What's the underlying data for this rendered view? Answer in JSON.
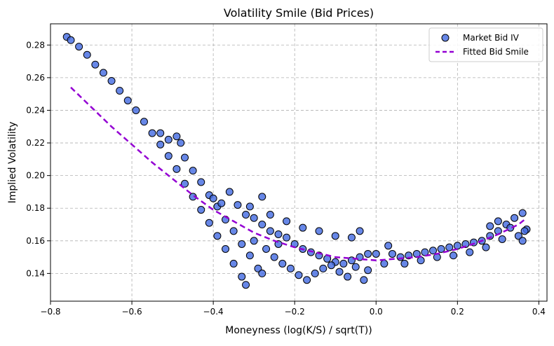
{
  "chart_data": {
    "type": "scatter",
    "title": "Volatility Smile (Bid Prices)",
    "xlabel": "Moneyness (log(K/S) / sqrt(T))",
    "ylabel": "Implied Volatility",
    "xlim": [
      -0.8,
      0.42
    ],
    "ylim": [
      0.123,
      0.293
    ],
    "xticks": [
      -0.8,
      -0.6,
      -0.4,
      -0.2,
      0.0,
      0.2,
      0.4
    ],
    "xtick_labels": [
      "−0.8",
      "−0.6",
      "−0.4",
      "−0.2",
      "0.0",
      "0.2",
      "0.4"
    ],
    "yticks": [
      0.14,
      0.16,
      0.18,
      0.2,
      0.22,
      0.24,
      0.26,
      0.28
    ],
    "ytick_labels": [
      "0.14",
      "0.16",
      "0.18",
      "0.20",
      "0.22",
      "0.24",
      "0.26",
      "0.28"
    ],
    "grid": true,
    "legend_position": "top-right",
    "colors": {
      "scatter_fill": "#4169e1",
      "scatter_edge": "#000000",
      "fit_line": "#9400d3",
      "grid": "#b0b0b0"
    },
    "series": [
      {
        "name": "Market Bid IV",
        "kind": "scatter",
        "points": [
          [
            -0.76,
            0.285
          ],
          [
            -0.75,
            0.283
          ],
          [
            -0.73,
            0.279
          ],
          [
            -0.71,
            0.274
          ],
          [
            -0.69,
            0.268
          ],
          [
            -0.67,
            0.263
          ],
          [
            -0.65,
            0.258
          ],
          [
            -0.63,
            0.252
          ],
          [
            -0.61,
            0.246
          ],
          [
            -0.59,
            0.24
          ],
          [
            -0.57,
            0.233
          ],
          [
            -0.55,
            0.226
          ],
          [
            -0.53,
            0.219
          ],
          [
            -0.51,
            0.212
          ],
          [
            -0.49,
            0.204
          ],
          [
            -0.47,
            0.195
          ],
          [
            -0.45,
            0.187
          ],
          [
            -0.43,
            0.179
          ],
          [
            -0.41,
            0.171
          ],
          [
            -0.39,
            0.163
          ],
          [
            -0.37,
            0.155
          ],
          [
            -0.35,
            0.146
          ],
          [
            -0.33,
            0.138
          ],
          [
            -0.32,
            0.133
          ],
          [
            -0.53,
            0.226
          ],
          [
            -0.51,
            0.222
          ],
          [
            -0.49,
            0.224
          ],
          [
            -0.48,
            0.22
          ],
          [
            -0.47,
            0.211
          ],
          [
            -0.45,
            0.203
          ],
          [
            -0.43,
            0.196
          ],
          [
            -0.41,
            0.188
          ],
          [
            -0.39,
            0.181
          ],
          [
            -0.37,
            0.173
          ],
          [
            -0.35,
            0.166
          ],
          [
            -0.33,
            0.158
          ],
          [
            -0.31,
            0.151
          ],
          [
            -0.29,
            0.143
          ],
          [
            -0.28,
            0.14
          ],
          [
            -0.4,
            0.186
          ],
          [
            -0.38,
            0.183
          ],
          [
            -0.36,
            0.19
          ],
          [
            -0.34,
            0.182
          ],
          [
            -0.32,
            0.176
          ],
          [
            -0.3,
            0.174
          ],
          [
            -0.28,
            0.17
          ],
          [
            -0.26,
            0.166
          ],
          [
            -0.24,
            0.164
          ],
          [
            -0.22,
            0.162
          ],
          [
            -0.2,
            0.158
          ],
          [
            -0.18,
            0.155
          ],
          [
            -0.16,
            0.153
          ],
          [
            -0.14,
            0.151
          ],
          [
            -0.12,
            0.149
          ],
          [
            -0.1,
            0.147
          ],
          [
            -0.08,
            0.146
          ],
          [
            -0.06,
            0.148
          ],
          [
            -0.04,
            0.15
          ],
          [
            -0.02,
            0.152
          ],
          [
            -0.3,
            0.16
          ],
          [
            -0.27,
            0.155
          ],
          [
            -0.25,
            0.15
          ],
          [
            -0.23,
            0.146
          ],
          [
            -0.21,
            0.143
          ],
          [
            -0.19,
            0.139
          ],
          [
            -0.17,
            0.136
          ],
          [
            -0.15,
            0.14
          ],
          [
            -0.13,
            0.143
          ],
          [
            -0.11,
            0.145
          ],
          [
            -0.09,
            0.141
          ],
          [
            -0.07,
            0.138
          ],
          [
            -0.05,
            0.144
          ],
          [
            -0.03,
            0.136
          ],
          [
            -0.02,
            0.142
          ],
          [
            -0.26,
            0.176
          ],
          [
            -0.22,
            0.172
          ],
          [
            -0.18,
            0.168
          ],
          [
            -0.14,
            0.166
          ],
          [
            -0.1,
            0.163
          ],
          [
            -0.06,
            0.162
          ],
          [
            -0.04,
            0.166
          ],
          [
            -0.28,
            0.187
          ],
          [
            -0.31,
            0.181
          ],
          [
            -0.24,
            0.158
          ],
          [
            0.0,
            0.152
          ],
          [
            0.02,
            0.146
          ],
          [
            0.04,
            0.152
          ],
          [
            0.06,
            0.15
          ],
          [
            0.08,
            0.151
          ],
          [
            0.1,
            0.152
          ],
          [
            0.12,
            0.153
          ],
          [
            0.14,
            0.154
          ],
          [
            0.16,
            0.155
          ],
          [
            0.18,
            0.156
          ],
          [
            0.2,
            0.157
          ],
          [
            0.22,
            0.158
          ],
          [
            0.24,
            0.159
          ],
          [
            0.26,
            0.16
          ],
          [
            0.28,
            0.163
          ],
          [
            0.3,
            0.166
          ],
          [
            0.32,
            0.17
          ],
          [
            0.34,
            0.174
          ],
          [
            0.36,
            0.177
          ],
          [
            0.03,
            0.157
          ],
          [
            0.07,
            0.146
          ],
          [
            0.11,
            0.148
          ],
          [
            0.15,
            0.15
          ],
          [
            0.19,
            0.151
          ],
          [
            0.23,
            0.153
          ],
          [
            0.27,
            0.156
          ],
          [
            0.31,
            0.161
          ],
          [
            0.35,
            0.163
          ],
          [
            0.37,
            0.167
          ],
          [
            0.28,
            0.169
          ],
          [
            0.3,
            0.172
          ],
          [
            0.33,
            0.168
          ],
          [
            0.36,
            0.16
          ],
          [
            0.365,
            0.166
          ]
        ]
      },
      {
        "name": "Fitted Bid Smile",
        "kind": "line",
        "style": "dashed",
        "points": [
          [
            -0.75,
            0.254
          ],
          [
            -0.7,
            0.242
          ],
          [
            -0.65,
            0.23
          ],
          [
            -0.6,
            0.219
          ],
          [
            -0.55,
            0.208
          ],
          [
            -0.5,
            0.198
          ],
          [
            -0.45,
            0.188
          ],
          [
            -0.4,
            0.179
          ],
          [
            -0.35,
            0.172
          ],
          [
            -0.3,
            0.165
          ],
          [
            -0.25,
            0.16
          ],
          [
            -0.2,
            0.156
          ],
          [
            -0.15,
            0.153
          ],
          [
            -0.1,
            0.15
          ],
          [
            -0.05,
            0.149
          ],
          [
            0.0,
            0.148
          ],
          [
            0.05,
            0.149
          ],
          [
            0.1,
            0.15
          ],
          [
            0.15,
            0.152
          ],
          [
            0.2,
            0.155
          ],
          [
            0.25,
            0.159
          ],
          [
            0.3,
            0.164
          ],
          [
            0.35,
            0.17
          ],
          [
            0.37,
            0.174
          ]
        ]
      }
    ]
  }
}
